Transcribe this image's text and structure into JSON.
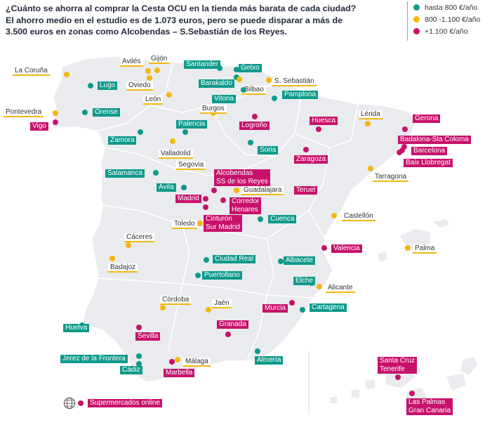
{
  "title": "¿Cuánto se ahorra al comprar la Cesta OCU en la tienda más barata de cada ciudad? El ahorro medio en el estudio es de 1.073 euros, pero se puede disparar a más de 3.500 euros en zonas como Alcobendas – S.Sebastián de los Reyes.",
  "colors": {
    "green": "#0e9a8b",
    "yellow": "#f4b70f",
    "pink": "#c7126b"
  },
  "legend": [
    {
      "label": "hasta 800 €/año",
      "cat": "green"
    },
    {
      "label": "800 -1.100 €/año",
      "cat": "yellow"
    },
    {
      "label": "+1.100 €/año",
      "cat": "pink"
    }
  ],
  "cities": [
    {
      "name": "La Coruña",
      "cat": "yellow",
      "dot": [
        95,
        106
      ],
      "lbl": [
        18,
        95
      ]
    },
    {
      "name": "Avilés",
      "cat": "yellow",
      "dot": [
        211,
        101
      ],
      "lbl": [
        171,
        82
      ]
    },
    {
      "name": "Gijón",
      "cat": "yellow",
      "dot": [
        224,
        100
      ],
      "lbl": [
        212,
        78
      ]
    },
    {
      "name": "Oviedo",
      "cat": "yellow",
      "dot": [
        213,
        111
      ],
      "lbl": [
        180,
        116
      ]
    },
    {
      "name": "Lugo",
      "cat": "green",
      "dot": [
        129,
        122
      ],
      "lbl": [
        139,
        116
      ]
    },
    {
      "name": "León",
      "cat": "yellow",
      "dot": [
        241,
        135
      ],
      "lbl": [
        204,
        136
      ]
    },
    {
      "name": "Pontevedra",
      "cat": "yellow",
      "dot": [
        79,
        161
      ],
      "lbl": [
        5,
        154
      ]
    },
    {
      "name": "Vigo",
      "cat": "pink",
      "dot": [
        79,
        174
      ],
      "lbl": [
        43,
        174
      ]
    },
    {
      "name": "Orense",
      "cat": "green",
      "dot": [
        121,
        160
      ],
      "lbl": [
        132,
        154
      ]
    },
    {
      "name": "Santander",
      "cat": "green",
      "dot": [
        313,
        97
      ],
      "lbl": [
        262,
        86
      ]
    },
    {
      "name": "Barakaldo",
      "cat": "green",
      "dot": [
        337,
        110
      ],
      "lbl": [
        283,
        113
      ]
    },
    {
      "name": "Getxo",
      "cat": "green",
      "dot": [
        337,
        99
      ],
      "lbl": [
        340,
        91
      ]
    },
    {
      "name": "Bilbao",
      "cat": "yellow",
      "dot": [
        341,
        113
      ],
      "lbl": [
        345,
        122
      ]
    },
    {
      "name": "S. Sebastián",
      "cat": "yellow",
      "dot": [
        383,
        114
      ],
      "lbl": [
        388,
        110
      ]
    },
    {
      "name": "Vitoria",
      "cat": "green",
      "dot": [
        347,
        128
      ],
      "lbl": [
        302,
        135
      ]
    },
    {
      "name": "Pamplona",
      "cat": "green",
      "dot": [
        391,
        140
      ],
      "lbl": [
        402,
        129
      ]
    },
    {
      "name": "Burgos",
      "cat": "yellow",
      "dot": [
        304,
        161
      ],
      "lbl": [
        285,
        149
      ]
    },
    {
      "name": "Logroño",
      "cat": "pink",
      "dot": [
        363,
        166
      ],
      "lbl": [
        341,
        173
      ]
    },
    {
      "name": "Palencia",
      "cat": "green",
      "dot": [
        264,
        188
      ],
      "lbl": [
        251,
        171
      ]
    },
    {
      "name": "Zamora",
      "cat": "green",
      "dot": [
        200,
        188
      ],
      "lbl": [
        154,
        194
      ]
    },
    {
      "name": "Valladolid",
      "cat": "yellow",
      "dot": [
        246,
        201
      ],
      "lbl": [
        226,
        213
      ]
    },
    {
      "name": "Soria",
      "cat": "green",
      "dot": [
        357,
        203
      ],
      "lbl": [
        367,
        208
      ]
    },
    {
      "name": "Huesca",
      "cat": "pink",
      "dot": [
        454,
        184
      ],
      "lbl": [
        441,
        166
      ]
    },
    {
      "name": "Zaragoza",
      "cat": "pink",
      "dot": [
        436,
        213
      ],
      "lbl": [
        419,
        221
      ]
    },
    {
      "name": "Lérida",
      "cat": "yellow",
      "dot": [
        524,
        176
      ],
      "lbl": [
        511,
        157
      ]
    },
    {
      "name": "Gerona",
      "cat": "pink",
      "dot": [
        577,
        184
      ],
      "lbl": [
        588,
        163
      ]
    },
    {
      "name": "Badalona-Sta Coloma",
      "cat": "pink",
      "dot": [
        576,
        209
      ],
      "lbl": [
        567,
        193
      ]
    },
    {
      "name": "Barcelona",
      "cat": "pink",
      "dot": [
        573,
        214
      ],
      "lbl": [
        586,
        209
      ]
    },
    {
      "name": "Baix Llobregat",
      "cat": "pink",
      "dot": [
        569,
        217
      ],
      "lbl": [
        575,
        226
      ]
    },
    {
      "name": "Tarragona",
      "cat": "yellow",
      "dot": [
        528,
        240
      ],
      "lbl": [
        531,
        246
      ]
    },
    {
      "name": "Salamanca",
      "cat": "green",
      "dot": [
        222,
        246
      ],
      "lbl": [
        150,
        241
      ]
    },
    {
      "name": "Segovia",
      "cat": "yellow",
      "dot": [
        270,
        233
      ],
      "lbl": [
        251,
        229
      ]
    },
    {
      "name": "Ávila",
      "cat": "green",
      "dot": [
        262,
        267
      ],
      "lbl": [
        223,
        261
      ]
    },
    {
      "name": "Alcobendas\nSS de los Reyes",
      "cat": "pink",
      "dot": [
        305,
        271
      ],
      "lbl": [
        305,
        241
      ]
    },
    {
      "name": "Guadalajara",
      "cat": "yellow",
      "dot": [
        337,
        271
      ],
      "lbl": [
        344,
        265
      ]
    },
    {
      "name": "Teruel",
      "cat": "pink",
      "dot": [
        434,
        271
      ],
      "lbl": [
        419,
        265
      ]
    },
    {
      "name": "Madrid",
      "cat": "pink",
      "dot": [
        293,
        283
      ],
      "lbl": [
        250,
        277
      ]
    },
    {
      "name": "Corredor\nHenares",
      "cat": "pink",
      "dot": [
        318,
        285
      ],
      "lbl": [
        327,
        281
      ]
    },
    {
      "name": "Cuenca",
      "cat": "green",
      "dot": [
        371,
        312
      ],
      "lbl": [
        382,
        306
      ]
    },
    {
      "name": "Castellón",
      "cat": "yellow",
      "dot": [
        476,
        307
      ],
      "lbl": [
        487,
        302
      ]
    },
    {
      "name": "Cinturón\nSur Madrid",
      "cat": "pink",
      "dot": [
        293,
        295
      ],
      "lbl": [
        290,
        306
      ]
    },
    {
      "name": "Toledo",
      "cat": "yellow",
      "dot": [
        285,
        318
      ],
      "lbl": [
        245,
        313
      ]
    },
    {
      "name": "Cáceres",
      "cat": "yellow",
      "dot": [
        183,
        349
      ],
      "lbl": [
        177,
        332
      ]
    },
    {
      "name": "Palma",
      "cat": "yellow",
      "dot": [
        581,
        353
      ],
      "lbl": [
        588,
        348
      ]
    },
    {
      "name": "Valencia",
      "cat": "pink",
      "dot": [
        462,
        353
      ],
      "lbl": [
        472,
        348
      ]
    },
    {
      "name": "Badajoz",
      "cat": "yellow",
      "dot": [
        160,
        368
      ],
      "lbl": [
        154,
        375
      ]
    },
    {
      "name": "Ciudad Real",
      "cat": "green",
      "dot": [
        294,
        370
      ],
      "lbl": [
        303,
        363
      ]
    },
    {
      "name": "Albacete",
      "cat": "green",
      "dot": [
        400,
        372
      ],
      "lbl": [
        404,
        365
      ]
    },
    {
      "name": "Puertollano",
      "cat": "green",
      "dot": [
        282,
        392
      ],
      "lbl": [
        288,
        386
      ]
    },
    {
      "name": "Elche",
      "cat": "green",
      "dot": [
        444,
        403
      ],
      "lbl": [
        418,
        394
      ]
    },
    {
      "name": "Alicante",
      "cat": "yellow",
      "dot": [
        455,
        408
      ],
      "lbl": [
        464,
        404
      ]
    },
    {
      "name": "Córdoba",
      "cat": "yellow",
      "dot": [
        232,
        438
      ],
      "lbl": [
        228,
        421
      ]
    },
    {
      "name": "Jaén",
      "cat": "yellow",
      "dot": [
        297,
        441
      ],
      "lbl": [
        302,
        426
      ]
    },
    {
      "name": "Murcia",
      "cat": "pink",
      "dot": [
        416,
        431
      ],
      "lbl": [
        374,
        433
      ]
    },
    {
      "name": "Cartagena",
      "cat": "green",
      "dot": [
        431,
        441
      ],
      "lbl": [
        441,
        432
      ]
    },
    {
      "name": "Huelva",
      "cat": "green",
      "dot": [
        117,
        463
      ],
      "lbl": [
        90,
        461
      ]
    },
    {
      "name": "Granada",
      "cat": "pink",
      "dot": [
        325,
        476
      ],
      "lbl": [
        309,
        456
      ]
    },
    {
      "name": "Sevilla",
      "cat": "pink",
      "dot": [
        198,
        466
      ],
      "lbl": [
        193,
        473
      ]
    },
    {
      "name": "Almería",
      "cat": "green",
      "dot": [
        367,
        500
      ],
      "lbl": [
        363,
        507
      ]
    },
    {
      "name": "Jerez de la Frontera",
      "cat": "green",
      "dot": [
        198,
        507
      ],
      "lbl": [
        86,
        505
      ]
    },
    {
      "name": "Cádiz",
      "cat": "green",
      "dot": [
        198,
        518
      ],
      "lbl": [
        171,
        521
      ]
    },
    {
      "name": "Málaga",
      "cat": "yellow",
      "dot": [
        253,
        512
      ],
      "lbl": [
        261,
        509
      ]
    },
    {
      "name": "Marbella",
      "cat": "pink",
      "dot": [
        245,
        515
      ],
      "lbl": [
        233,
        525
      ]
    },
    {
      "name": "Santa Cruz\nTenerife",
      "cat": "pink",
      "dot": [
        567,
        537
      ],
      "lbl": [
        538,
        508
      ]
    },
    {
      "name": "Las Palmas\nGran Canaria",
      "cat": "pink",
      "dot": [
        587,
        560
      ],
      "lbl": [
        579,
        567
      ]
    }
  ],
  "online": {
    "name": "Supermercados online",
    "cat": "pink",
    "icon": "globe-icon"
  }
}
